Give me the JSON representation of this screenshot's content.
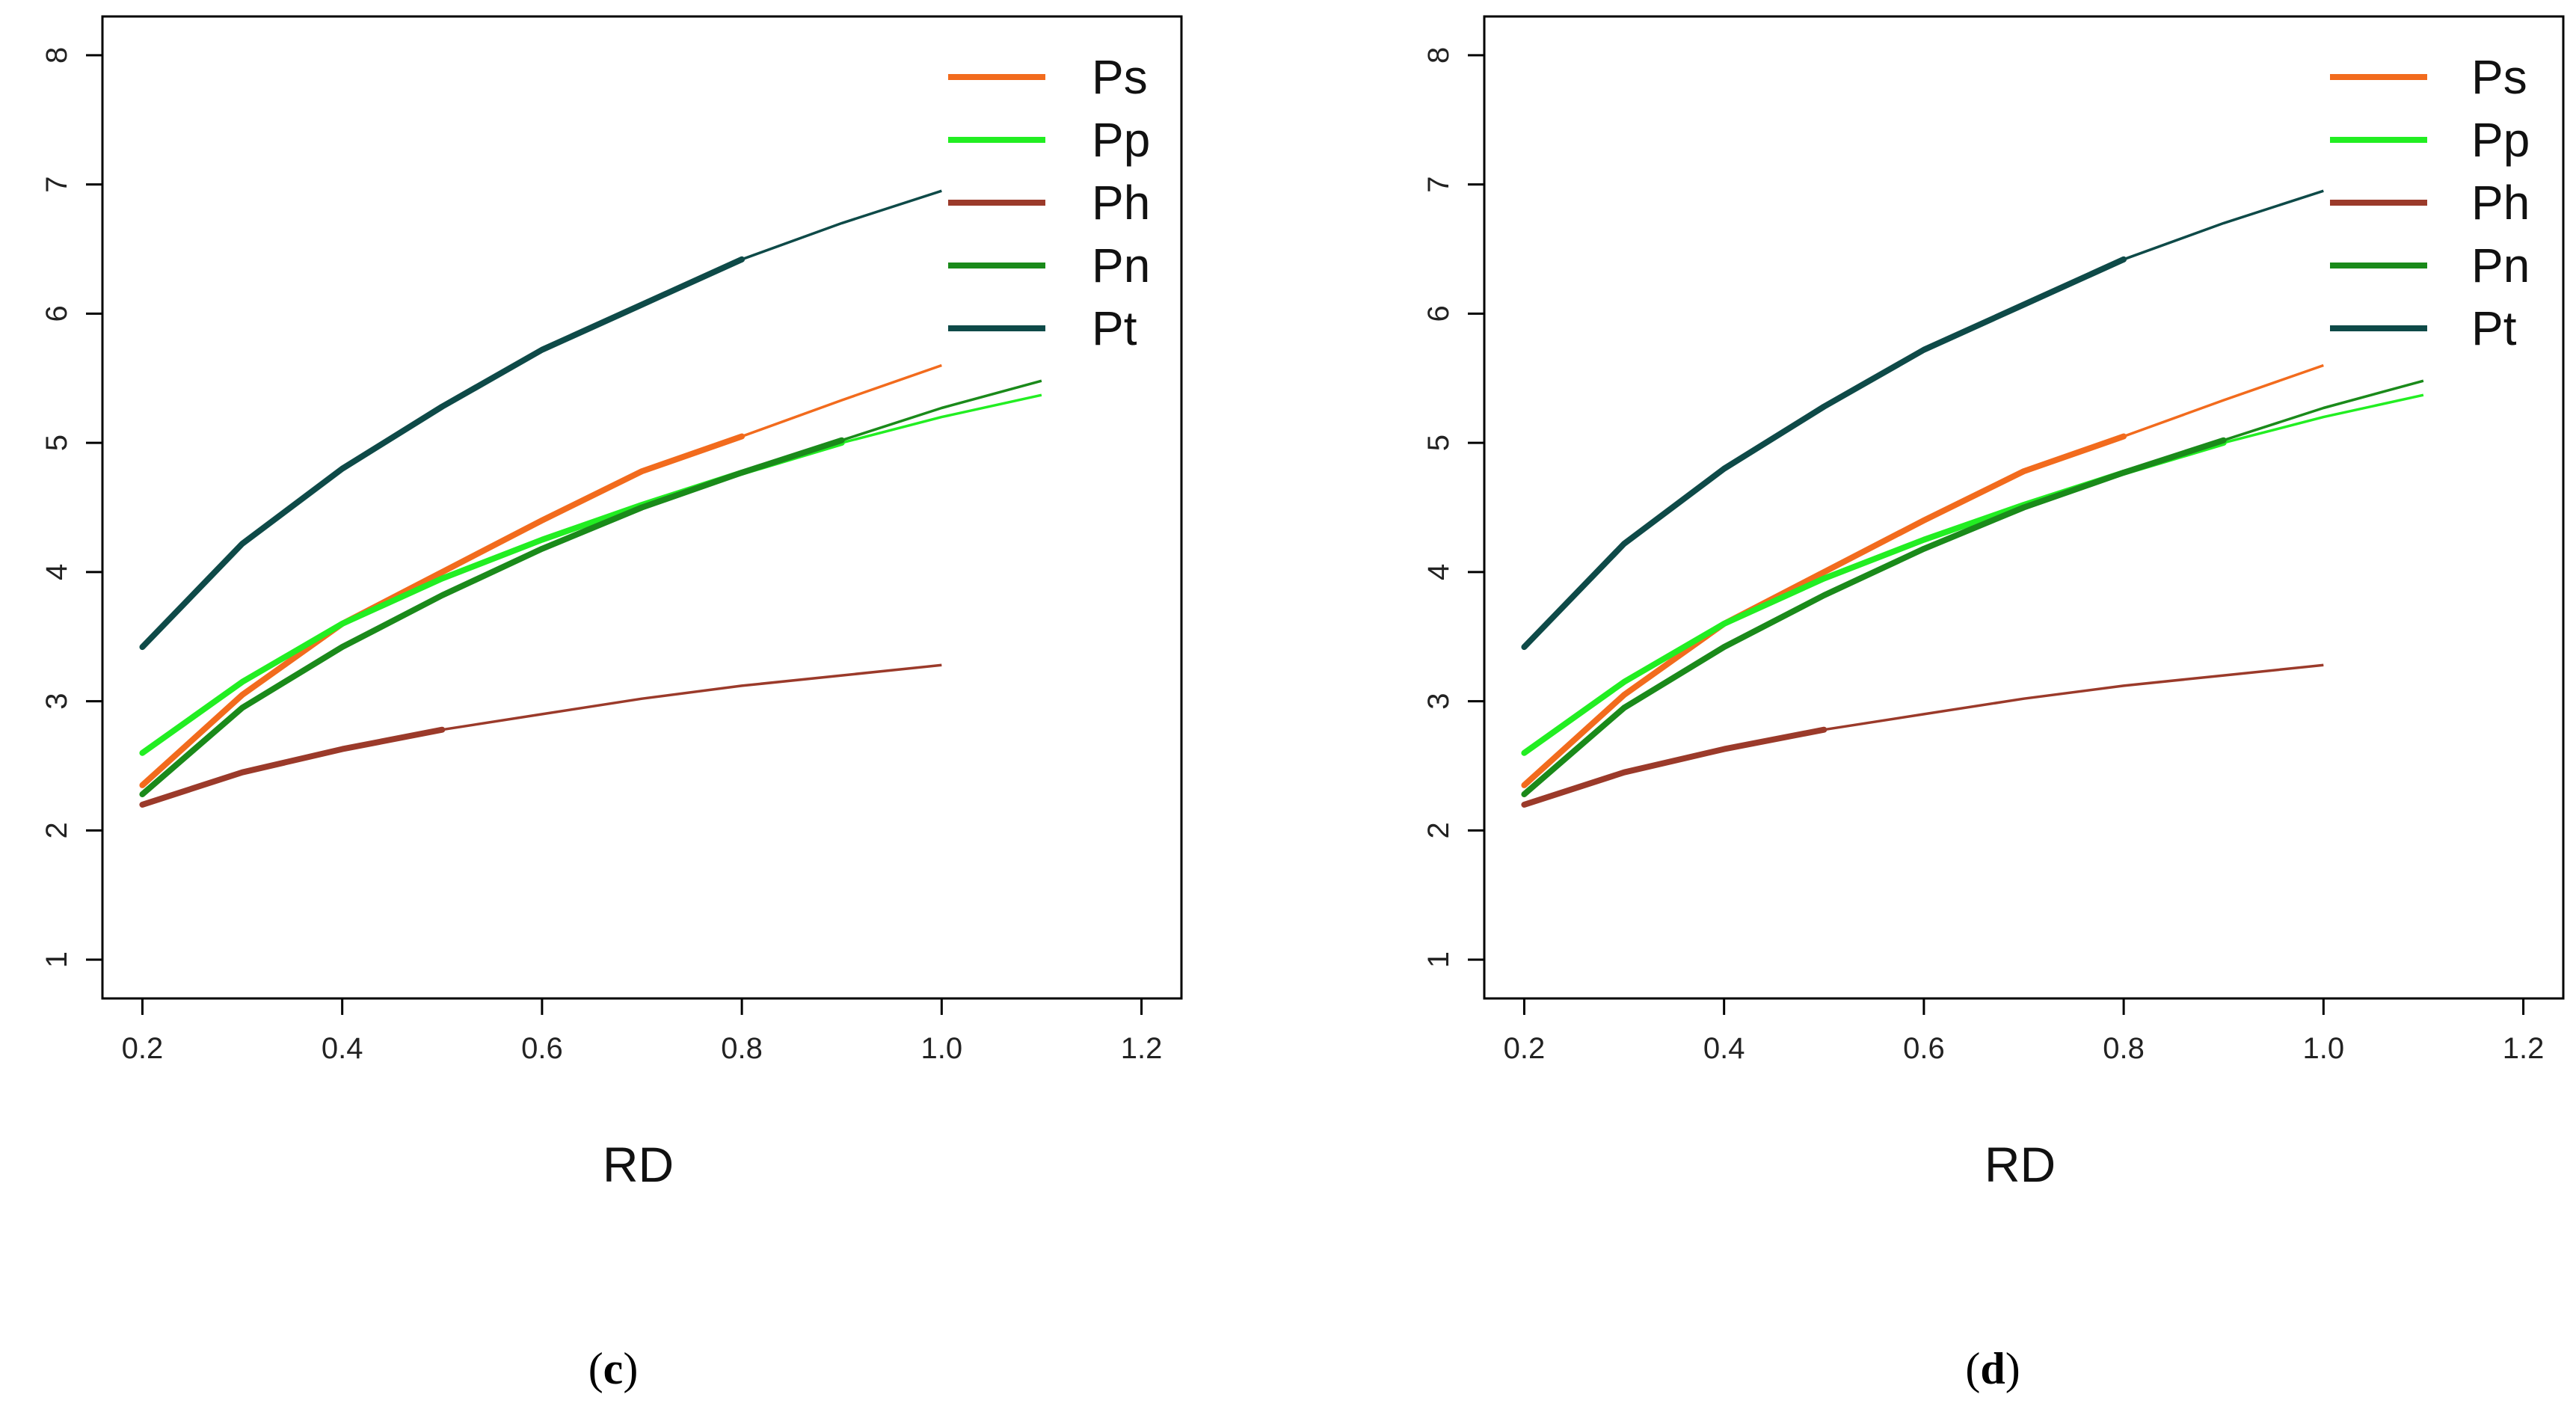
{
  "chart_data": [
    {
      "type": "line",
      "panel": "c",
      "caption": {
        "open": "(",
        "letter": "c",
        "close": ")"
      },
      "xlabel": "RD",
      "ylabel": "",
      "xlim": [
        0.16,
        1.24
      ],
      "ylim": [
        0.7,
        8.3
      ],
      "xticks": [
        0.2,
        0.4,
        0.6,
        0.8,
        1.0,
        1.2
      ],
      "xtick_labels": [
        "0.2",
        "0.4",
        "0.6",
        "0.8",
        "1.0",
        "1.2"
      ],
      "yticks": [
        1,
        2,
        3,
        4,
        5,
        6,
        7,
        8
      ],
      "ytick_labels": [
        "1",
        "2",
        "3",
        "4",
        "5",
        "6",
        "7",
        "8"
      ],
      "legend_position": "top-right",
      "series": [
        {
          "name": "Ps",
          "color": "#F26B1D",
          "thick_until": 0.8,
          "x": [
            0.2,
            0.3,
            0.4,
            0.5,
            0.6,
            0.7,
            0.8,
            0.9,
            1.0
          ],
          "y": [
            2.35,
            3.05,
            3.6,
            4.0,
            4.4,
            4.78,
            5.05,
            5.33,
            5.6
          ]
        },
        {
          "name": "Pp",
          "color": "#22EE22",
          "thick_until": 0.9,
          "x": [
            0.2,
            0.3,
            0.4,
            0.5,
            0.6,
            0.7,
            0.8,
            0.9,
            1.0,
            1.1
          ],
          "y": [
            2.6,
            3.15,
            3.6,
            3.95,
            4.25,
            4.52,
            4.77,
            5.0,
            5.2,
            5.37
          ]
        },
        {
          "name": "Ph",
          "color": "#9B3A2A",
          "thick_until": 0.5,
          "x": [
            0.2,
            0.3,
            0.4,
            0.5,
            0.6,
            0.7,
            0.8,
            0.9,
            1.0
          ],
          "y": [
            2.2,
            2.45,
            2.63,
            2.78,
            2.9,
            3.02,
            3.12,
            3.2,
            3.28
          ]
        },
        {
          "name": "Pn",
          "color": "#1A8A1A",
          "thick_until": 0.9,
          "x": [
            0.2,
            0.3,
            0.4,
            0.5,
            0.6,
            0.7,
            0.8,
            0.9,
            1.0,
            1.1
          ],
          "y": [
            2.28,
            2.95,
            3.42,
            3.82,
            4.18,
            4.5,
            4.77,
            5.02,
            5.27,
            5.48
          ]
        },
        {
          "name": "Pt",
          "color": "#0E4A48",
          "thick_until": 0.8,
          "x": [
            0.2,
            0.3,
            0.4,
            0.5,
            0.6,
            0.7,
            0.8,
            0.9,
            1.0
          ],
          "y": [
            3.42,
            4.22,
            4.8,
            5.28,
            5.72,
            6.07,
            6.42,
            6.7,
            6.95
          ]
        }
      ]
    },
    {
      "type": "line",
      "panel": "d",
      "caption": {
        "open": "(",
        "letter": "d",
        "close": ")"
      },
      "xlabel": "RD",
      "ylabel": "",
      "xlim": [
        0.16,
        1.24
      ],
      "ylim": [
        0.7,
        8.3
      ],
      "xticks": [
        0.2,
        0.4,
        0.6,
        0.8,
        1.0,
        1.2
      ],
      "xtick_labels": [
        "0.2",
        "0.4",
        "0.6",
        "0.8",
        "1.0",
        "1.2"
      ],
      "yticks": [
        1,
        2,
        3,
        4,
        5,
        6,
        7,
        8
      ],
      "ytick_labels": [
        "1",
        "2",
        "3",
        "4",
        "5",
        "6",
        "7",
        "8"
      ],
      "legend_position": "top-right",
      "series": [
        {
          "name": "Ps",
          "color": "#F26B1D",
          "thick_until": 0.8,
          "x": [
            0.2,
            0.3,
            0.4,
            0.5,
            0.6,
            0.7,
            0.8,
            0.9,
            1.0
          ],
          "y": [
            2.35,
            3.05,
            3.6,
            4.0,
            4.4,
            4.78,
            5.05,
            5.33,
            5.6
          ]
        },
        {
          "name": "Pp",
          "color": "#22EE22",
          "thick_until": 0.9,
          "x": [
            0.2,
            0.3,
            0.4,
            0.5,
            0.6,
            0.7,
            0.8,
            0.9,
            1.0,
            1.1
          ],
          "y": [
            2.6,
            3.15,
            3.6,
            3.95,
            4.25,
            4.52,
            4.77,
            5.0,
            5.2,
            5.37
          ]
        },
        {
          "name": "Ph",
          "color": "#9B3A2A",
          "thick_until": 0.5,
          "x": [
            0.2,
            0.3,
            0.4,
            0.5,
            0.6,
            0.7,
            0.8,
            0.9,
            1.0
          ],
          "y": [
            2.2,
            2.45,
            2.63,
            2.78,
            2.9,
            3.02,
            3.12,
            3.2,
            3.28
          ]
        },
        {
          "name": "Pn",
          "color": "#1A8A1A",
          "thick_until": 0.9,
          "x": [
            0.2,
            0.3,
            0.4,
            0.5,
            0.6,
            0.7,
            0.8,
            0.9,
            1.0,
            1.1
          ],
          "y": [
            2.28,
            2.95,
            3.42,
            3.82,
            4.18,
            4.5,
            4.77,
            5.02,
            5.27,
            5.48
          ]
        },
        {
          "name": "Pt",
          "color": "#0E4A48",
          "thick_until": 0.8,
          "x": [
            0.2,
            0.3,
            0.4,
            0.5,
            0.6,
            0.7,
            0.8,
            0.9,
            1.0
          ],
          "y": [
            3.42,
            4.22,
            4.8,
            5.28,
            5.72,
            6.07,
            6.42,
            6.7,
            6.95
          ]
        }
      ]
    }
  ]
}
